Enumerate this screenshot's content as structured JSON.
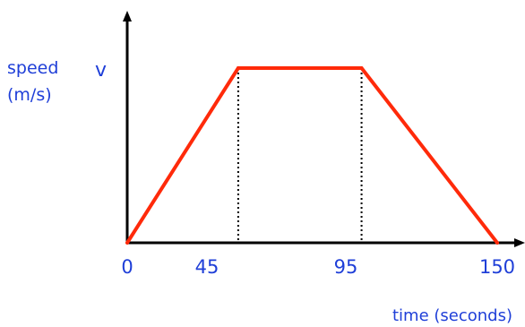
{
  "chart_data": {
    "type": "line",
    "x": [
      0,
      45,
      95,
      150
    ],
    "y_labels": [
      "0",
      "v",
      "v",
      "0"
    ],
    "x_ticks": [
      "0",
      "45",
      "95",
      "150"
    ],
    "y_tick": "v",
    "xlabel": "time (seconds)",
    "ylabel_line1": "speed",
    "ylabel_line2": "(m/s)",
    "dashed_guides_at_x": [
      45,
      95
    ],
    "grid": false
  },
  "colors": {
    "line": "#ff2a0a",
    "axis": "#000000",
    "text": "#1f3fd8",
    "guide": "#000000"
  }
}
